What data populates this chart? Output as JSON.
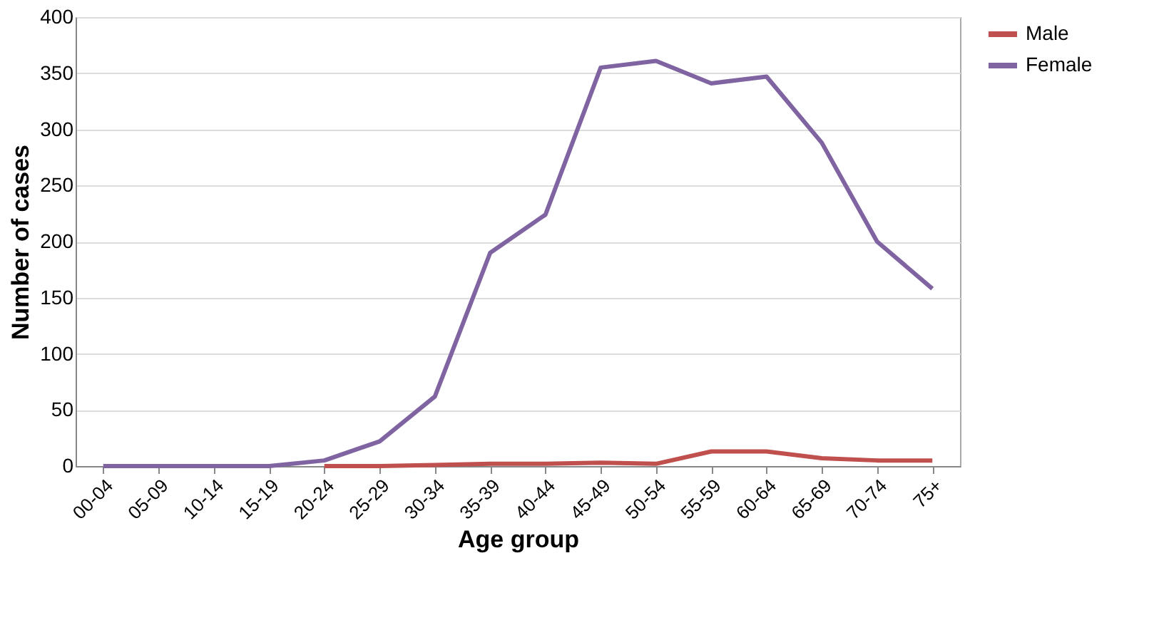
{
  "chart_data": {
    "type": "line",
    "xlabel": "Age group",
    "ylabel": "Number of cases",
    "categories": [
      "00-04",
      "05-09",
      "10-14",
      "15-19",
      "20-24",
      "25-29",
      "30-34",
      "35-39",
      "40-44",
      "45-49",
      "50-54",
      "55-59",
      "60-64",
      "65-69",
      "70-74",
      "75+"
    ],
    "series": [
      {
        "name": "Male",
        "color": "#c0504d",
        "values": [
          null,
          null,
          null,
          null,
          0,
          0,
          1,
          2,
          2,
          3,
          2,
          13,
          13,
          7,
          5,
          5
        ]
      },
      {
        "name": "Female",
        "color": "#8064a2",
        "values": [
          0,
          0,
          0,
          0,
          5,
          22,
          62,
          190,
          224,
          355,
          361,
          341,
          347,
          288,
          200,
          158
        ]
      }
    ],
    "ylim": [
      0,
      400
    ],
    "yticks": [
      0,
      50,
      100,
      150,
      200,
      250,
      300,
      350,
      400
    ],
    "grid": "y",
    "legend": "right",
    "marker": "none",
    "line_style": "solid"
  }
}
